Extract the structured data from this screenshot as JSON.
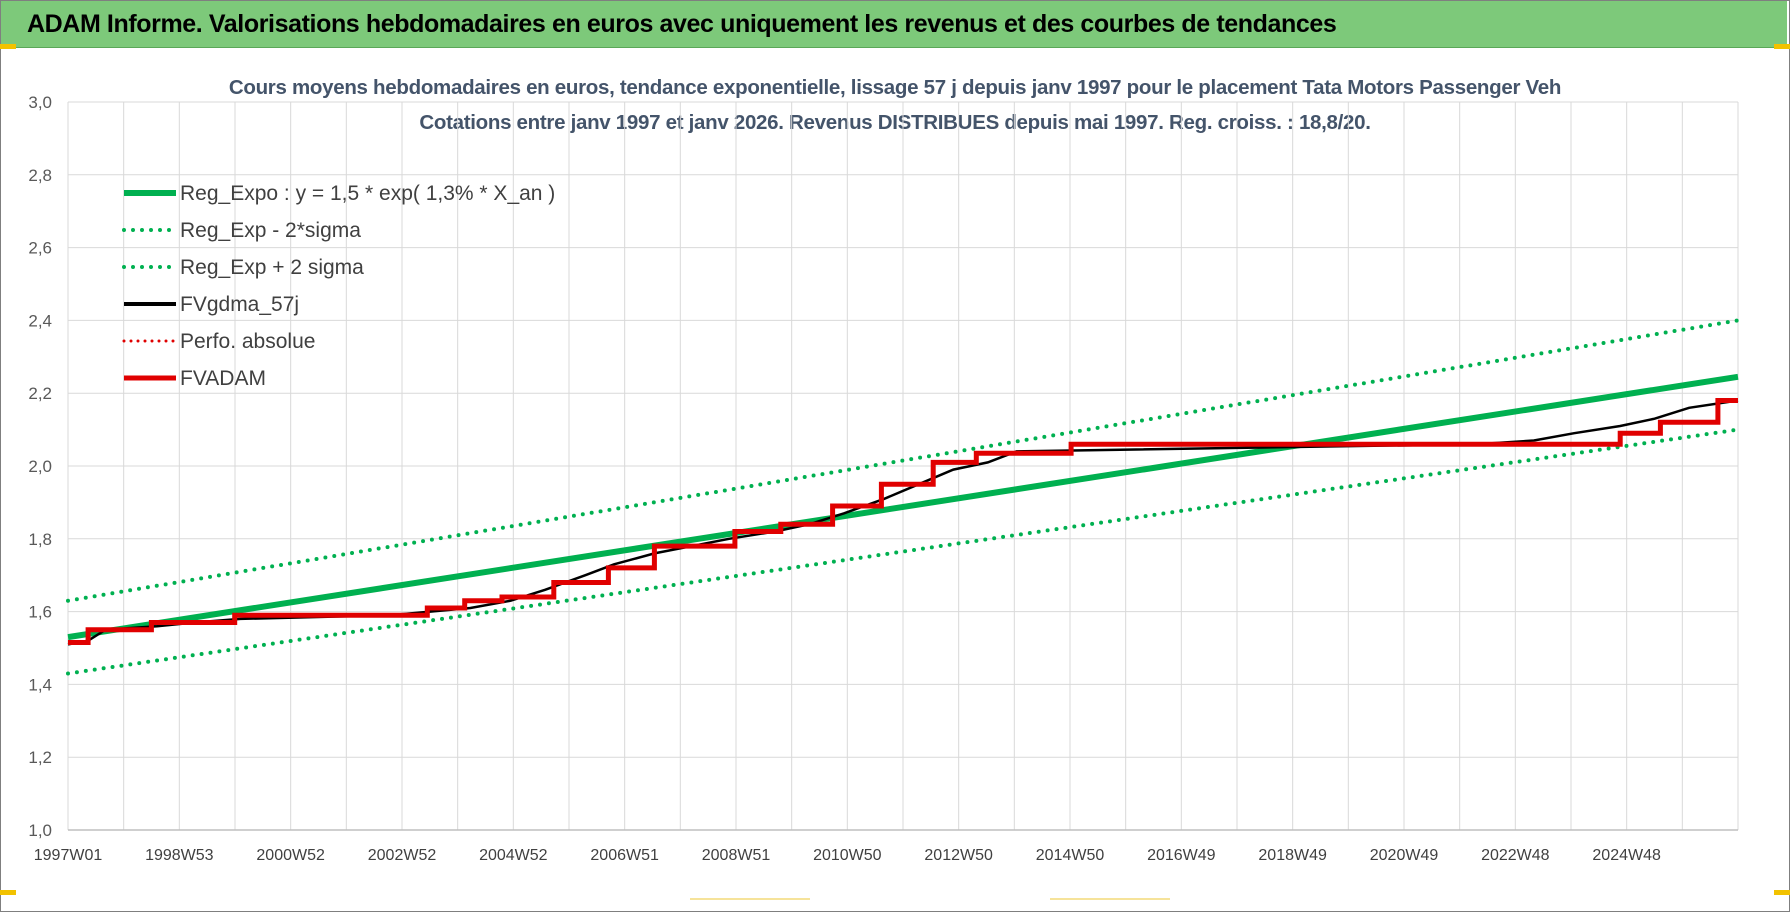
{
  "banner": {
    "title": "ADAM Informe. Valorisations hebdomadaires en euros avec uniquement les revenus et des courbes de tendances"
  },
  "colors": {
    "banner_bg": "#7dc97a",
    "reg_green": "#00b050",
    "red": "#e00000",
    "black": "#000000",
    "title_text": "#44546a",
    "grid": "#d9d9d9"
  },
  "chart_data": {
    "type": "line",
    "title": "Cours moyens hebdomadaires en euros, tendance exponentielle, lissage 57 j depuis janv 1997 pour le placement Tata Motors Passenger Veh",
    "subtitle": "Cotations entre janv 1997 et janv 2026. Revenus DISTRIBUES depuis mai 1997.  Reg. croiss. : 18,8/20.",
    "xlabel": "",
    "ylabel": "",
    "ylim": [
      1.0,
      3.0
    ],
    "y_ticks": [
      "1,0",
      "1,2",
      "1,4",
      "1,6",
      "1,8",
      "2,0",
      "2,2",
      "2,4",
      "2,6",
      "2,8",
      "3,0"
    ],
    "x_ticks": [
      "1997W01",
      "1998W53",
      "2000W52",
      "2002W52",
      "2004W52",
      "2006W51",
      "2008W51",
      "2010W50",
      "2012W50",
      "2014W50",
      "2016W49",
      "2018W49",
      "2020W49",
      "2022W48",
      "2024W48"
    ],
    "x_range_years": [
      1997.0,
      2026.05
    ],
    "grid": true,
    "legend_position": "top-left",
    "series": [
      {
        "name": "Reg_Expo : y = 1,5 * exp( 1,3% *  X_an )",
        "style": "solid-thick",
        "color": "#00b050",
        "x": [
          1997.0,
          2026.05
        ],
        "y": [
          1.53,
          2.245
        ]
      },
      {
        "name": "Reg_Exp - 2*sigma",
        "style": "dotted",
        "color": "#00b050",
        "x": [
          1997.0,
          2026.05
        ],
        "y": [
          1.43,
          2.1
        ]
      },
      {
        "name": "Reg_Exp + 2 sigma",
        "style": "dotted",
        "color": "#00b050",
        "x": [
          1997.0,
          2026.05
        ],
        "y": [
          1.63,
          2.4
        ]
      },
      {
        "name": "FVgdma_57j",
        "style": "solid",
        "color": "#000000",
        "x": [
          1997.0,
          1997.35,
          1997.65,
          1998.55,
          1999.2,
          2000.0,
          2002.6,
          2003.3,
          2004.0,
          2004.7,
          2005.3,
          2006.0,
          2006.5,
          2007.2,
          2008.5,
          2009.3,
          2009.9,
          2010.5,
          2011.2,
          2011.8,
          2012.4,
          2013.0,
          2013.5,
          2021.5,
          2022.5,
          2023.2,
          2024.0,
          2024.6,
          2025.2,
          2026.05
        ],
        "y": [
          1.51,
          1.52,
          1.55,
          1.56,
          1.57,
          1.58,
          1.59,
          1.6,
          1.61,
          1.63,
          1.66,
          1.7,
          1.73,
          1.76,
          1.8,
          1.82,
          1.84,
          1.87,
          1.91,
          1.95,
          1.99,
          2.01,
          2.04,
          2.06,
          2.07,
          2.09,
          2.11,
          2.13,
          2.16,
          2.18
        ]
      },
      {
        "name": "Perfo. absolue",
        "style": "dotted",
        "color": "#e00000",
        "x": [],
        "y": []
      },
      {
        "name": "FVADAM",
        "style": "step-thick",
        "color": "#e00000",
        "x": [
          1997.0,
          1997.35,
          1998.45,
          1999.9,
          2002.6,
          2003.25,
          2003.9,
          2004.55,
          2005.45,
          2006.4,
          2007.2,
          2008.6,
          2009.4,
          2010.3,
          2011.15,
          2012.05,
          2012.8,
          2014.45,
          2024.0,
          2024.7,
          2025.7
        ],
        "y": [
          1.515,
          1.55,
          1.57,
          1.59,
          1.59,
          1.61,
          1.63,
          1.64,
          1.68,
          1.72,
          1.78,
          1.82,
          1.84,
          1.89,
          1.95,
          2.01,
          2.035,
          2.06,
          2.09,
          2.12,
          2.18
        ]
      }
    ]
  }
}
